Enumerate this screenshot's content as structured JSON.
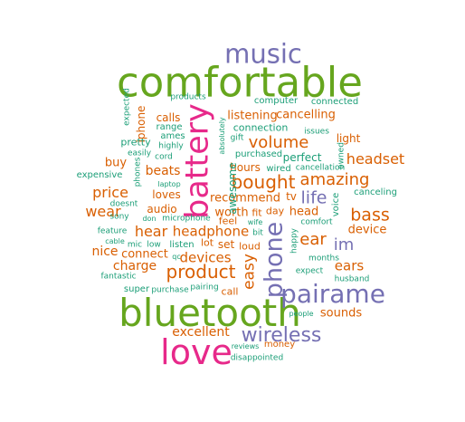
{
  "words": {
    "comfortable": "comfortable",
    "bluetooth": "bluetooth",
    "love": "love",
    "battery": "battery",
    "music": "music",
    "pairame": "pairame",
    "phone": "phone",
    "wireless": "wireless",
    "product": "product",
    "bought": "bought",
    "volume": "volume",
    "amazing": "amazing",
    "bass": "bass",
    "life": "life",
    "headset": "headset",
    "price": "price",
    "wear": "wear",
    "hear": "hear",
    "headphone": "headphone",
    "devices": "devices",
    "easy": "easy",
    "ear": "ear",
    "im": "im",
    "ears": "ears",
    "excellent": "excellent",
    "sounds": "sounds",
    "device": "device",
    "nice": "nice",
    "charge": "charge",
    "connect": "connect",
    "beats": "beats",
    "buy": "buy",
    "loves": "loves",
    "audio": "audio",
    "worth": "worth",
    "recommend": "recommend",
    "tv": "tv",
    "head": "head",
    "listening": "listening",
    "cancelling": "cancelling",
    "calls": "calls",
    "iphone": "iphone",
    "light": "light",
    "hours": "hours",
    "perfect": "perfect",
    "set": "set",
    "loud": "loud",
    "day": "day",
    "fit": "fit",
    "feel": "feel",
    "connection": "connection",
    "lot": "lot",
    "awesome": "awesome",
    "call": "call",
    "money": "money",
    "expected": "expected",
    "products": "products",
    "range": "range",
    "computer": "computer",
    "connected": "connected",
    "pretty": "pretty",
    "ames": "ames",
    "highly": "highly",
    "gift": "gift",
    "absolutely": "absolutely",
    "issues": "issues",
    "cord": "cord",
    "easily": "easily",
    "purchased": "purchased",
    "wired": "wired",
    "cancellation": "cancellation",
    "owned": "owned",
    "expensive": "expensive",
    "phones": "phones",
    "laptop": "laptop",
    "canceling": "canceling",
    "doesnt": "doesnt",
    "sony": "sony",
    "don": "don",
    "microphone": "microphone",
    "voice": "voice",
    "comfort": "comfort",
    "wife": "wife",
    "bit": "bit",
    "feature": "feature",
    "cable": "cable",
    "mic": "mic",
    "low": "low",
    "listen": "listen",
    "happy": "happy",
    "months": "months",
    "qc": "qc",
    "husband": "husband",
    "fantastic": "fantastic",
    "expect": "expect",
    "super": "super",
    "purchase": "purchase",
    "pairing": "pairing",
    "people": "people",
    "reviews": "reviews",
    "disappointed": "disappointed"
  },
  "colors": {
    "teal": "#1b9e77",
    "orange": "#d95f02",
    "purple": "#7570b3",
    "magenta": "#e7298a",
    "green": "#66a61e"
  }
}
